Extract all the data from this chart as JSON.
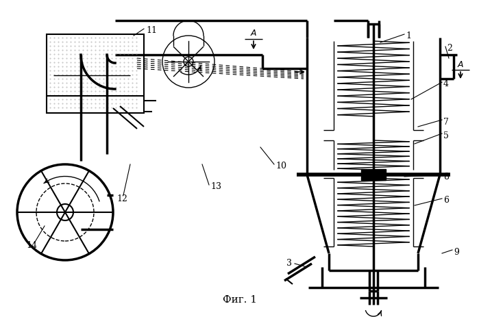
{
  "fig_caption": "Фиг. 1",
  "background_color": "#ffffff",
  "fig_width": 6.99,
  "fig_height": 4.63,
  "dpi": 100
}
